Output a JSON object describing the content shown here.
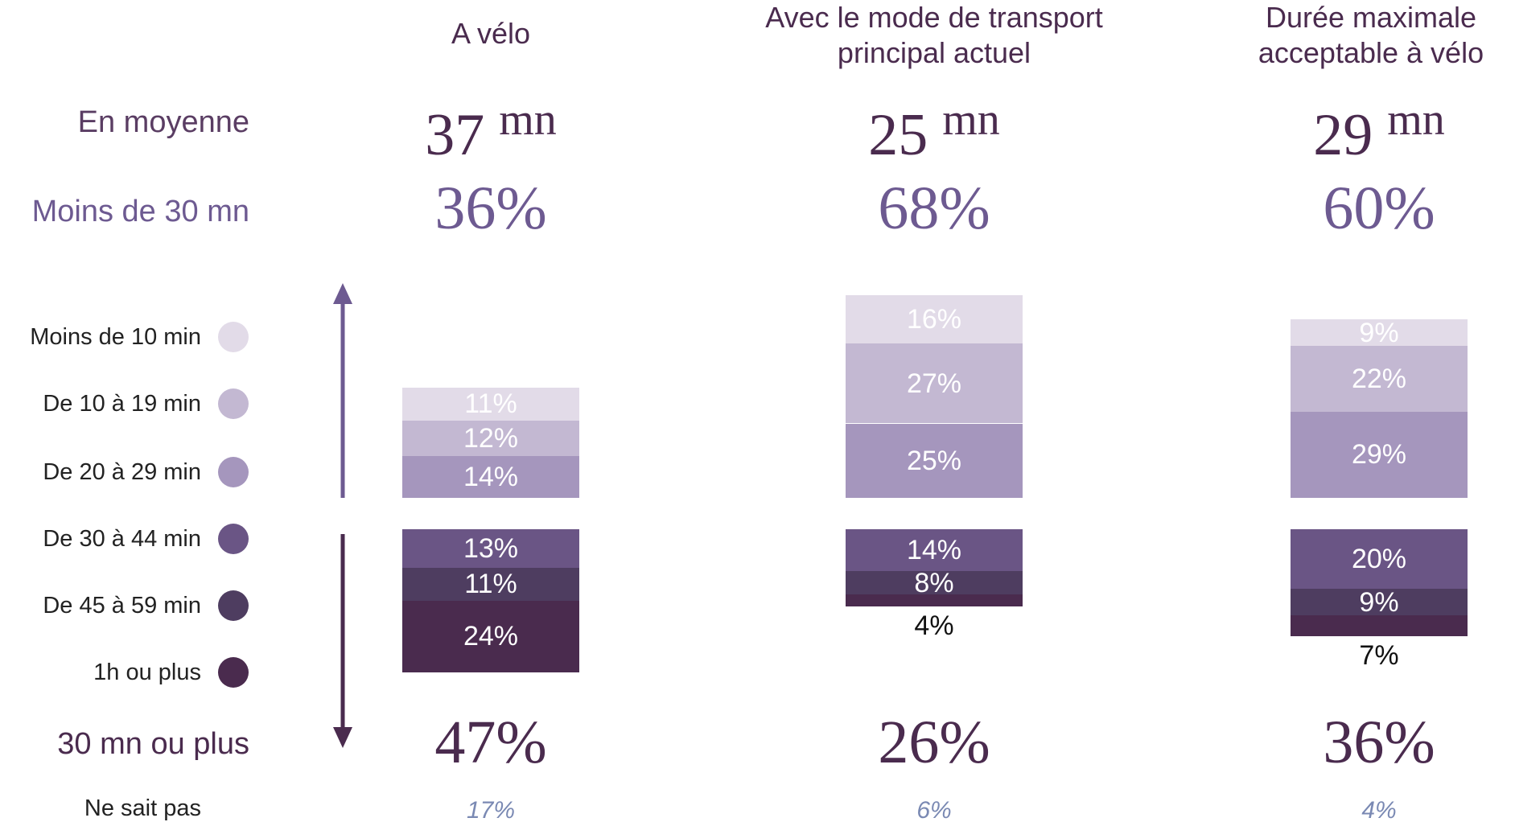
{
  "chart_data": {
    "type": "diverging-stacked-bar",
    "categories": [
      "A vélo",
      "Avec le mode de transport principal actuel",
      "Durée maximale acceptable à vélo"
    ],
    "average": {
      "label": "En moyenne",
      "unit": "mn",
      "values": [
        37,
        25,
        29
      ]
    },
    "under_30": {
      "label": "Moins de 30 mn",
      "values": [
        36,
        68,
        60
      ],
      "value_labels": [
        "36%",
        "68%",
        "60%"
      ]
    },
    "over_30": {
      "label": "30 mn ou plus",
      "values": [
        47,
        26,
        36
      ],
      "value_labels": [
        "47%",
        "26%",
        "36%"
      ]
    },
    "unknown": {
      "label": "Ne sait pas",
      "values": [
        17,
        6,
        4
      ],
      "value_labels": [
        "17%",
        "6%",
        "4%"
      ]
    },
    "series": [
      {
        "name": "Moins de 10 min",
        "color": "#e2dbe8",
        "values": [
          11,
          16,
          9
        ],
        "value_labels": [
          "11%",
          "16%",
          "9%"
        ]
      },
      {
        "name": "De 10 à 19 min",
        "color": "#c3b8d2",
        "values": [
          12,
          27,
          22
        ],
        "value_labels": [
          "12%",
          "27%",
          "22%"
        ]
      },
      {
        "name": "De 20 à 29 min",
        "color": "#a596bd",
        "values": [
          14,
          25,
          29
        ],
        "value_labels": [
          "14%",
          "25%",
          "29%"
        ]
      },
      {
        "name": "De 30 à 44 min",
        "color": "#6a5585",
        "values": [
          13,
          14,
          20
        ],
        "value_labels": [
          "13%",
          "14%",
          "20%"
        ]
      },
      {
        "name": "De 45 à 59 min",
        "color": "#4e3d60",
        "values": [
          11,
          8,
          9
        ],
        "value_labels": [
          "11%",
          "8%",
          "9%"
        ]
      },
      {
        "name": "1h ou plus",
        "color": "#4a2b4e",
        "values": [
          24,
          4,
          7
        ],
        "value_labels": [
          "24%",
          "4%",
          "7%"
        ]
      }
    ]
  }
}
